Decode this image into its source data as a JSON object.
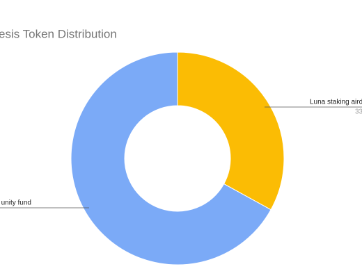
{
  "chart_data": {
    "type": "donut",
    "title": "esis Token Distribution",
    "categories": [
      "Luna staking aird",
      "unity fund"
    ],
    "values": [
      33,
      67
    ],
    "colors": [
      "#fbbc04",
      "#7baaf7"
    ]
  }
}
